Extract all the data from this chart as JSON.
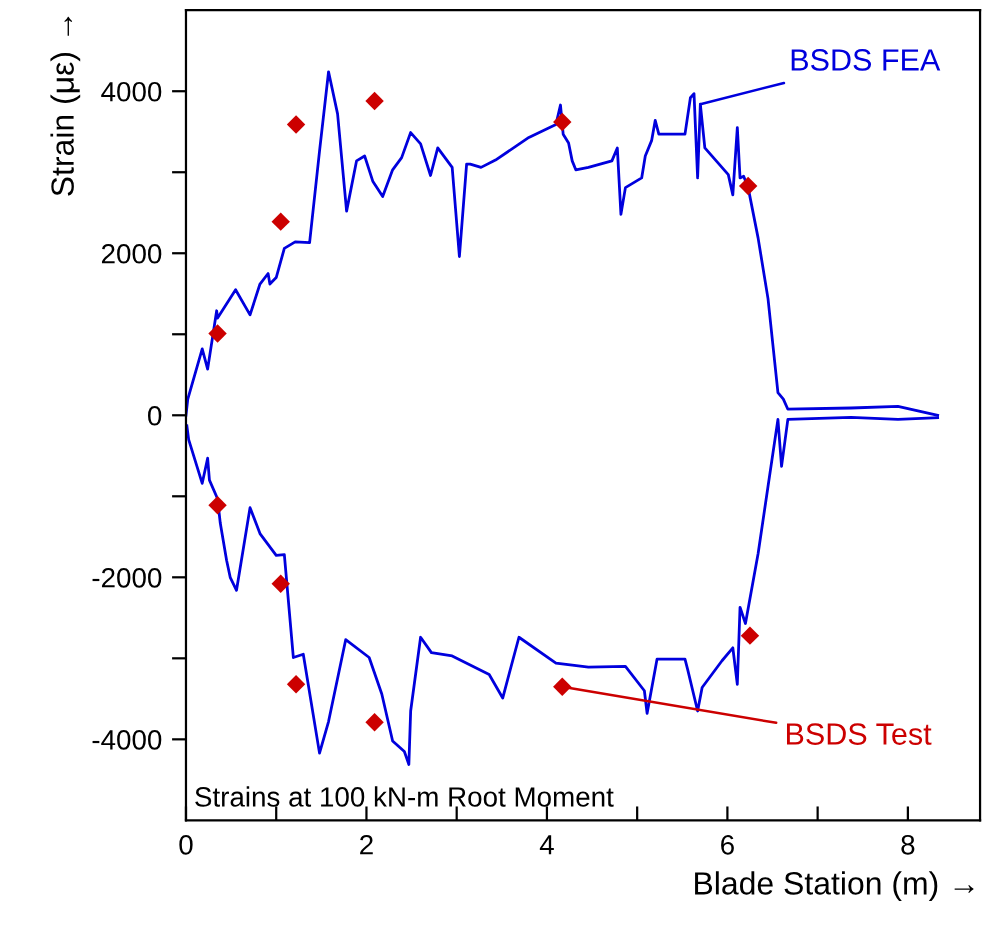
{
  "chart_data": {
    "type": "line",
    "xlabel": "Blade Station (m) →",
    "ylabel": "Strain (με) →",
    "xlim": [
      0,
      8.8
    ],
    "ylim": [
      -5000,
      5000
    ],
    "xticks": [
      0,
      {
        "value": 1,
        "label": null
      },
      2,
      {
        "value": 3,
        "label": null
      },
      4,
      {
        "value": 5,
        "label": null
      },
      6,
      {
        "value": 7,
        "label": null
      },
      8
    ],
    "yticks": [
      -4000,
      {
        "value": -3000,
        "label": null
      },
      -2000,
      {
        "value": -1000,
        "label": null
      },
      0,
      {
        "value": 1000,
        "label": null
      },
      2000,
      {
        "value": 3000,
        "label": null
      },
      4000
    ],
    "grid": false,
    "legend": false,
    "series": [
      {
        "color": "#0000dd",
        "x": [
          0,
          0.02,
          0.18,
          0.24,
          0.34,
          0.35,
          0.55,
          0.71,
          0.82,
          0.91,
          0.93,
          1.0,
          1.09,
          1.21,
          1.37,
          1.48,
          1.58,
          1.68,
          1.78,
          1.89,
          1.98,
          2.07,
          2.18,
          2.29,
          2.39,
          2.49,
          2.6,
          2.71,
          2.79,
          2.95,
          3.03,
          3.11,
          3.15,
          3.27,
          3.43,
          3.8,
          4.1,
          4.15,
          4.18,
          4.24,
          4.28,
          4.32,
          4.46,
          4.72,
          4.78,
          4.82,
          4.87,
          5.05,
          5.09,
          5.16,
          5.2,
          5.24,
          5.53,
          5.59,
          5.63,
          5.67,
          5.7,
          5.75,
          6.01,
          6.06,
          6.11,
          6.14,
          6.18,
          6.23,
          6.34,
          6.45,
          6.56,
          6.62,
          6.67,
          7.37,
          7.89,
          8.33
        ],
        "values": [
          0,
          200,
          820,
          570,
          1290,
          1200,
          1550,
          1240,
          1620,
          1750,
          1620,
          1700,
          2060,
          2140,
          2130,
          3260,
          4240,
          3720,
          2520,
          3140,
          3200,
          2890,
          2700,
          3030,
          3180,
          3490,
          3350,
          2960,
          3300,
          3060,
          1960,
          3100,
          3100,
          3060,
          3150,
          3430,
          3590,
          3830,
          3470,
          3360,
          3140,
          3030,
          3060,
          3140,
          3300,
          2480,
          2810,
          2930,
          3200,
          3390,
          3640,
          3470,
          3470,
          3920,
          3970,
          2930,
          3840,
          3300,
          2970,
          2720,
          3550,
          2930,
          2950,
          2810,
          2190,
          1440,
          280,
          200,
          75,
          90,
          110,
          0
        ]
      },
      {
        "color": "#0000dd",
        "x": [
          0.01,
          0.03,
          0.18,
          0.24,
          0.26,
          0.35,
          0.38,
          0.45,
          0.49,
          0.56,
          0.71,
          0.82,
          1.0,
          1.09,
          1.19,
          1.3,
          1.48,
          1.58,
          1.77,
          2.03,
          2.17,
          2.29,
          2.42,
          2.47,
          2.49,
          2.6,
          2.72,
          2.95,
          3.36,
          3.51,
          3.69,
          4.1,
          4.46,
          4.87,
          5.08,
          5.11,
          5.22,
          5.53,
          5.56,
          5.67,
          5.72,
          5.94,
          6.06,
          6.11,
          6.14,
          6.2,
          6.34,
          6.45,
          6.56,
          6.6,
          6.67,
          7.37,
          7.89,
          8.33
        ],
        "values": [
          -130,
          -300,
          -840,
          -530,
          -800,
          -1030,
          -1330,
          -1790,
          -2000,
          -2160,
          -1140,
          -1460,
          -1730,
          -1720,
          -2990,
          -2950,
          -4170,
          -3780,
          -2770,
          -2990,
          -3440,
          -4020,
          -4150,
          -4310,
          -3650,
          -2740,
          -2930,
          -2970,
          -3200,
          -3490,
          -2740,
          -3060,
          -3110,
          -3100,
          -3400,
          -3680,
          -3010,
          -3010,
          -3140,
          -3650,
          -3360,
          -3030,
          -2870,
          -3320,
          -2370,
          -2570,
          -1710,
          -880,
          -50,
          -630,
          -50,
          -25,
          -50,
          -30
        ]
      },
      {
        "type": "scatter",
        "color": "#cc0000",
        "marker": "diamond",
        "x": [
          0.35,
          1.05,
          1.22,
          2.09,
          4.17,
          6.23,
          0.35,
          1.05,
          1.22,
          2.09,
          4.17,
          6.25
        ],
        "values": [
          1010,
          2390,
          3590,
          3880,
          3620,
          2830,
          -1110,
          -2080,
          -3320,
          -3790,
          -3350,
          -2720
        ]
      }
    ],
    "annotations": [
      {
        "text": "BSDS FEA",
        "x": 5.7,
        "y": 3840
      },
      {
        "text": "BSDS Test",
        "x": 4.17,
        "y": -3350
      },
      "Strains at 100 kN-m Root Moment"
    ]
  }
}
